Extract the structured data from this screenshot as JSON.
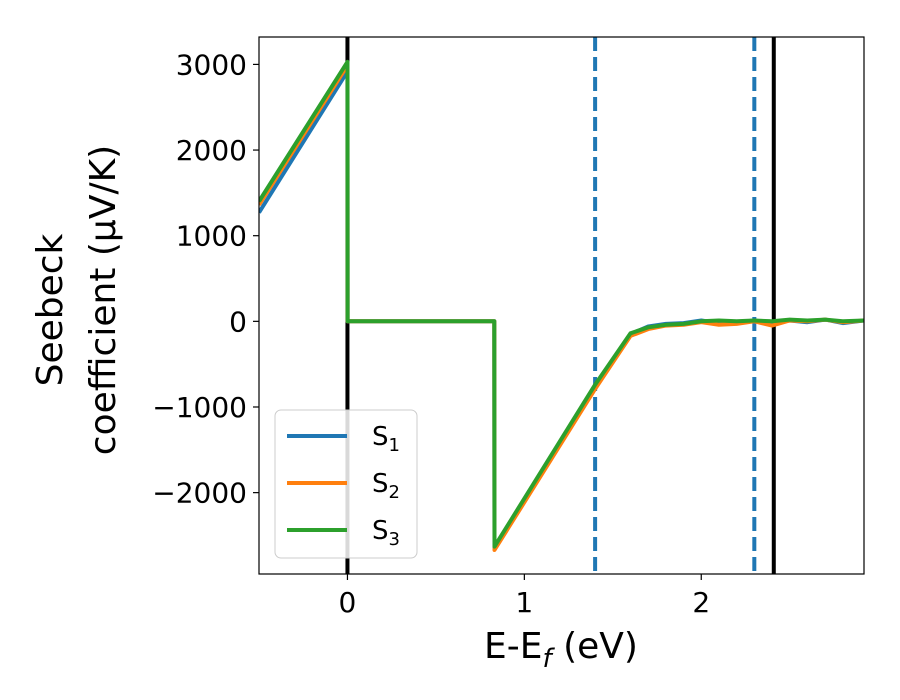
{
  "chart_data": {
    "type": "line",
    "xlabel": {
      "base": "E-E",
      "sub": "f",
      "suffix": " (eV)"
    },
    "ylabel": {
      "line1": "Seebeck",
      "line2": "coefficient  (μV/K)"
    },
    "xlim": [
      -0.5,
      2.92
    ],
    "ylim": [
      -2950,
      3320
    ],
    "xticks": [
      0,
      1,
      2
    ],
    "xtick_labels": [
      "0",
      "1",
      "2"
    ],
    "yticks": [
      3000,
      2000,
      1000,
      0,
      -1000,
      -2000
    ],
    "ytick_labels": [
      "3000",
      "2000",
      "1000",
      "0",
      "−1000",
      "−2000"
    ],
    "grid": false,
    "legend_position": "lower-left",
    "vlines": [
      {
        "x": 0,
        "style": "solid",
        "color": "#000000"
      },
      {
        "x": 2.41,
        "style": "solid",
        "color": "#000000"
      },
      {
        "x": 1.4,
        "style": "dashed",
        "color": "#1f77b4"
      },
      {
        "x": 2.3,
        "style": "dashed",
        "color": "#1f77b4"
      }
    ],
    "series": [
      {
        "name": "S",
        "sub": "1",
        "color": "#1f77b4",
        "x": [
          -0.5,
          0.0,
          0.001,
          0.83,
          0.831,
          1.4,
          1.6,
          1.7,
          1.8,
          1.9,
          2.0,
          2.1,
          2.2,
          2.3,
          2.4,
          2.5,
          2.6,
          2.7,
          2.8,
          2.92
        ],
        "y": [
          1270,
          2920,
          0,
          0,
          -2640,
          -760,
          -150,
          -60,
          -30,
          -20,
          10,
          -20,
          -10,
          10,
          -20,
          10,
          -10,
          20,
          -20,
          10
        ]
      },
      {
        "name": "S",
        "sub": "2",
        "color": "#ff7f0e",
        "x": [
          -0.5,
          0.0,
          0.001,
          0.83,
          0.831,
          1.4,
          1.6,
          1.7,
          1.8,
          1.9,
          2.0,
          2.1,
          2.2,
          2.3,
          2.4,
          2.5,
          2.6,
          2.7,
          2.8,
          2.92
        ],
        "y": [
          1360,
          2990,
          0,
          0,
          -2670,
          -790,
          -170,
          -90,
          -50,
          -40,
          -10,
          -40,
          -30,
          0,
          -50,
          10,
          0,
          20,
          -10,
          10
        ]
      },
      {
        "name": "S",
        "sub": "3",
        "color": "#2ca02c",
        "x": [
          -0.5,
          0.0,
          0.001,
          0.83,
          0.831,
          1.4,
          1.6,
          1.7,
          1.8,
          1.9,
          2.0,
          2.1,
          2.2,
          2.3,
          2.4,
          2.5,
          2.6,
          2.7,
          2.8,
          2.92
        ],
        "y": [
          1400,
          3030,
          0,
          0,
          -2630,
          -740,
          -140,
          -70,
          -40,
          -30,
          0,
          10,
          0,
          10,
          0,
          20,
          10,
          20,
          0,
          10
        ]
      }
    ]
  }
}
